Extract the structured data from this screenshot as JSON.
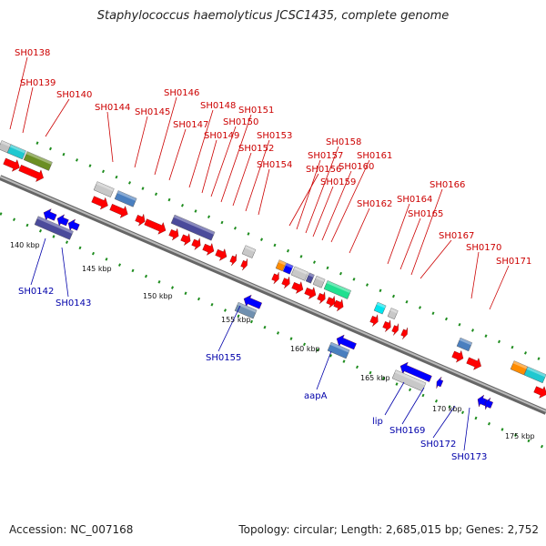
{
  "title": "Staphylococcus haemolyticus JCSC1435, complete genome",
  "footer": {
    "accession": "Accession: NC_007168",
    "stats": "Topology: circular; Length: 2,685,015 bp; Genes: 2,752"
  },
  "colors": {
    "forward_label": "#cc0000",
    "reverse_label": "#0000aa",
    "backbone": "#888888",
    "arrow_red": "#ff0000",
    "arrow_blue": "#0000ff",
    "tick_green": "#1e8c1e"
  },
  "scale_ticks": [
    "140 kbp",
    "145 kbp",
    "150 kbp",
    "155 kbp",
    "160 kbp",
    "165 kbp",
    "170 kbp",
    "175 kbp"
  ],
  "forward_genes": [
    "SH0138",
    "SH0139",
    "SH0140",
    "SH0144",
    "SH0145",
    "SH0146",
    "SH0147",
    "SH0148",
    "SH0149",
    "SH0150",
    "SH0151",
    "SH0152",
    "SH0153",
    "SH0154",
    "SH0156",
    "SH0157",
    "SH0158",
    "SH0159",
    "SH0160",
    "SH0161",
    "SH0162",
    "SH0164",
    "SH0165",
    "SH0166",
    "SH0167",
    "SH0170",
    "SH0171"
  ],
  "reverse_genes": [
    "SH0142",
    "SH0143",
    "SH0155",
    "aapA",
    "lip",
    "SH0169",
    "SH0172",
    "SH0173"
  ]
}
